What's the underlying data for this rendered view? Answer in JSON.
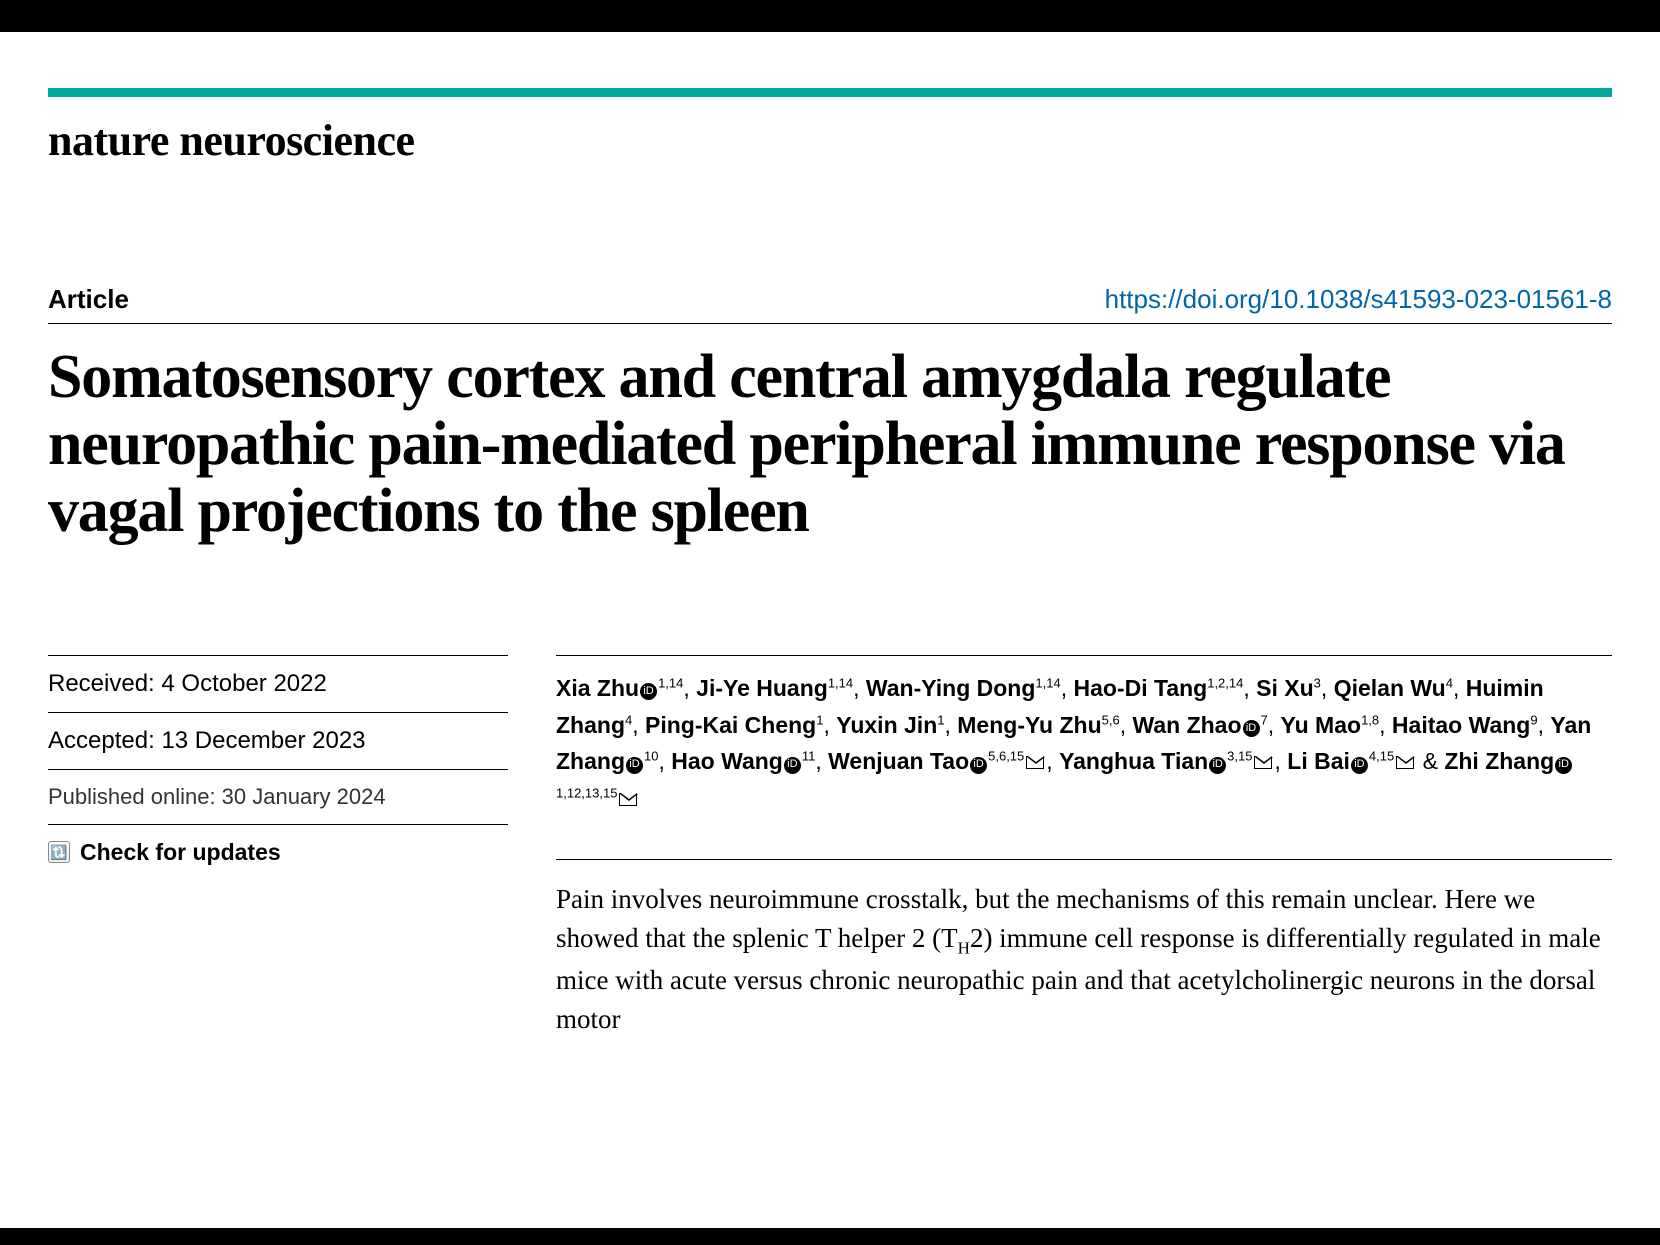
{
  "journal": "nature neuroscience",
  "article_type": "Article",
  "doi": "https://doi.org/10.1038/s41593-023-01561-8",
  "title": "Somatosensory cortex and central amygdala regulate neuropathic pain-mediated peripheral immune response via vagal projections to the spleen",
  "dates": {
    "received_label": "Received: 4 October 2022",
    "accepted_label": "Accepted: 13 December 2023",
    "published_label": "Published online: 30 January 2024"
  },
  "updates_label": "Check for updates",
  "colors": {
    "accent": "#00a99d",
    "link": "#0066a8",
    "text": "#000000",
    "background": "#ffffff"
  },
  "typography": {
    "journal_fontsize": 44,
    "title_fontsize": 62,
    "meta_fontsize": 26,
    "authors_fontsize": 23,
    "abstract_fontsize": 27
  },
  "authors": [
    {
      "name": "Xia Zhu",
      "orcid": true,
      "affil": "1,14"
    },
    {
      "name": "Ji-Ye Huang",
      "affil": "1,14"
    },
    {
      "name": "Wan-Ying Dong",
      "affil": "1,14"
    },
    {
      "name": "Hao-Di Tang",
      "affil": "1,2,14"
    },
    {
      "name": "Si Xu",
      "affil": "3"
    },
    {
      "name": "Qielan Wu",
      "affil": "4"
    },
    {
      "name": "Huimin Zhang",
      "affil": "4"
    },
    {
      "name": "Ping-Kai Cheng",
      "affil": "1"
    },
    {
      "name": "Yuxin Jin",
      "affil": "1"
    },
    {
      "name": "Meng-Yu Zhu",
      "affil": "5,6"
    },
    {
      "name": "Wan Zhao",
      "orcid": true,
      "affil": "7"
    },
    {
      "name": "Yu Mao",
      "affil": "1,8"
    },
    {
      "name": "Haitao Wang",
      "affil": "9"
    },
    {
      "name": "Yan Zhang",
      "orcid": true,
      "affil": "10"
    },
    {
      "name": "Hao Wang",
      "orcid": true,
      "affil": "11"
    },
    {
      "name": "Wenjuan Tao",
      "orcid": true,
      "affil": "5,6,15",
      "corresponding": true
    },
    {
      "name": "Yanghua Tian",
      "orcid": true,
      "affil": "3,15",
      "corresponding": true
    },
    {
      "name": "Li Bai",
      "orcid": true,
      "affil": "4,15",
      "corresponding": true
    },
    {
      "name": "Zhi Zhang",
      "orcid": true,
      "affil": "1,12,13,15",
      "corresponding": true
    }
  ],
  "abstract_text": "Pain involves neuroimmune crosstalk, but the mechanisms of this remain unclear. Here we showed that the splenic T helper 2 (T_H2) immune cell response is differentially regulated in male mice with acute versus chronic neuropathic pain and that acetylcholinergic neurons in the dorsal motor"
}
